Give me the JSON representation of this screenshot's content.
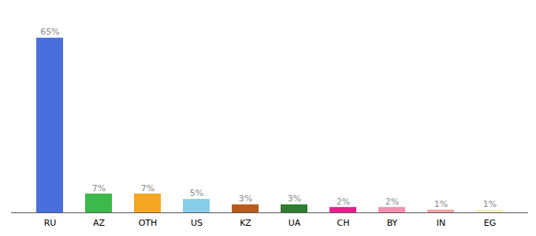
{
  "chart_data": {
    "type": "bar",
    "categories": [
      "RU",
      "AZ",
      "OTH",
      "US",
      "KZ",
      "UA",
      "CH",
      "BY",
      "IN",
      "EG"
    ],
    "values": [
      65,
      7,
      7,
      5,
      3,
      3,
      2,
      2,
      1,
      1
    ],
    "value_labels": [
      "65%",
      "7%",
      "7%",
      "5%",
      "3%",
      "3%",
      "2%",
      "2%",
      "1%",
      "1%"
    ],
    "colors": [
      "#4a6fdc",
      "#3db84a",
      "#f5a623",
      "#87ceeb",
      "#b85c1a",
      "#2e7d32",
      "#e91e8c",
      "#f48fb1",
      "#f4a0a0",
      "#f5f0c0"
    ],
    "data_labels": true,
    "ylim": [
      0,
      72
    ],
    "tick_labels": "x",
    "grid": false
  }
}
